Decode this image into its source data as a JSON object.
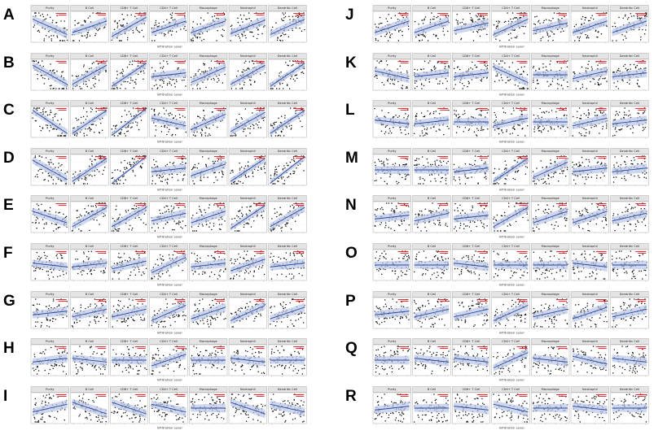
{
  "figure": {
    "facet_labels": [
      "Purity",
      "B Cell",
      "CD8+ T Cell",
      "CD4+ T Cell",
      "Macrophage",
      "Neutrophil",
      "Dendritic Cell"
    ],
    "x_axis_label": "Infiltration Level",
    "stat_color": "#e8141c",
    "fit_color": "#2b4aa0",
    "band_color": "#b9c6e6",
    "point_color": "#111111",
    "strip_color": "#e4e4e4"
  },
  "panels": [
    {
      "letter": "A",
      "trends": [
        -0.4,
        0.3,
        0.5,
        0.3,
        0.3,
        0.35,
        0.4
      ]
    },
    {
      "letter": "B",
      "trends": [
        -0.5,
        0.5,
        0.6,
        0.1,
        0.4,
        0.5,
        0.6
      ]
    },
    {
      "letter": "C",
      "trends": [
        -0.6,
        0.6,
        0.7,
        -0.2,
        0.4,
        0.5,
        0.6
      ]
    },
    {
      "letter": "D",
      "trends": [
        -0.5,
        0.6,
        0.8,
        0.1,
        0.3,
        0.6,
        0.7
      ]
    },
    {
      "letter": "E",
      "trends": [
        -0.3,
        0.5,
        0.5,
        0.2,
        0.3,
        0.6,
        0.5
      ]
    },
    {
      "letter": "F",
      "trends": [
        -0.1,
        0.1,
        0.2,
        0.4,
        0.1,
        0.3,
        0.1
      ]
    },
    {
      "letter": "G",
      "trends": [
        0.1,
        0.2,
        0.2,
        0.4,
        0.3,
        0.4,
        0.3
      ]
    },
    {
      "letter": "H",
      "trends": [
        0.1,
        -0.1,
        0.0,
        0.3,
        0.0,
        -0.1,
        0.0
      ]
    },
    {
      "letter": "I",
      "trends": [
        0.2,
        -0.3,
        -0.3,
        -0.2,
        0.0,
        -0.3,
        -0.2
      ]
    },
    {
      "letter": "J",
      "trends": [
        0.3,
        0.3,
        0.2,
        0.4,
        0.2,
        0.3,
        0.3
      ]
    },
    {
      "letter": "K",
      "trends": [
        -0.2,
        0.1,
        0.1,
        -0.4,
        0.0,
        0.2,
        0.1
      ]
    },
    {
      "letter": "L",
      "trends": [
        -0.1,
        0.1,
        0.0,
        0.2,
        0.0,
        0.2,
        0.1
      ]
    },
    {
      "letter": "M",
      "trends": [
        0.0,
        0.0,
        0.1,
        0.6,
        0.4,
        0.1,
        0.1
      ]
    },
    {
      "letter": "N",
      "trends": [
        0.1,
        0.2,
        0.1,
        0.5,
        0.3,
        0.3,
        0.2
      ]
    },
    {
      "letter": "O",
      "trends": [
        0.0,
        0.0,
        -0.1,
        0.0,
        0.0,
        -0.1,
        0.0
      ]
    },
    {
      "letter": "P",
      "trends": [
        0.1,
        0.2,
        0.2,
        0.4,
        0.2,
        0.3,
        0.2
      ]
    },
    {
      "letter": "Q",
      "trends": [
        0.0,
        -0.1,
        -0.1,
        0.4,
        -0.1,
        -0.2,
        -0.1
      ]
    },
    {
      "letter": "R",
      "trends": [
        0.1,
        0.0,
        -0.1,
        -0.2,
        0.0,
        -0.1,
        0.0
      ]
    }
  ],
  "chart_data": {
    "type": "scatter",
    "description_note": "",
    "facets": [
      "Purity",
      "B Cell",
      "CD8+ T Cell",
      "CD4+ T Cell",
      "Macrophage",
      "Neutrophil",
      "Dendritic Cell"
    ],
    "xlabel": "Infiltration Level",
    "panel_letters": [
      "A",
      "B",
      "C",
      "D",
      "E",
      "F",
      "G",
      "H",
      "I",
      "J",
      "K",
      "L",
      "M",
      "N",
      "O",
      "P",
      "Q",
      "R"
    ]
  }
}
